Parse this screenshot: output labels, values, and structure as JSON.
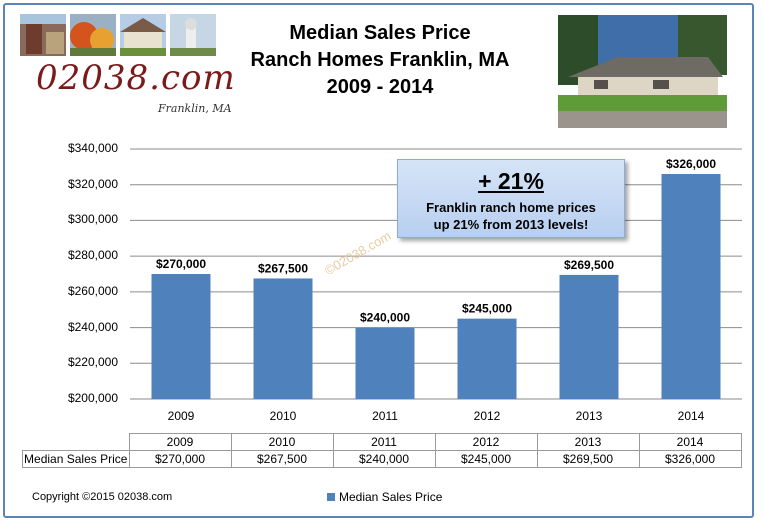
{
  "header": {
    "title_lines": [
      "Median Sales Price",
      "Ranch Homes Franklin, MA",
      "2009 - 2014"
    ],
    "logo_text": "02038.com",
    "logo_subtext": "Franklin, MA"
  },
  "chart_data": {
    "type": "bar",
    "title": "Median Sales Price Ranch Homes Franklin, MA 2009 - 2014",
    "categories": [
      "2009",
      "2010",
      "2011",
      "2012",
      "2013",
      "2014"
    ],
    "series": [
      {
        "name": "Median Sales Price",
        "values": [
          270000,
          267500,
          240000,
          245000,
          269500,
          326000
        ]
      }
    ],
    "data_labels": [
      "$270,000",
      "$267,500",
      "$240,000",
      "$245,000",
      "$269,500",
      "$326,000"
    ],
    "y_ticks": [
      "$200,000",
      "$220,000",
      "$240,000",
      "$260,000",
      "$280,000",
      "$300,000",
      "$320,000",
      "$340,000"
    ],
    "ylim": [
      200000,
      340000
    ],
    "grid": true,
    "legend_position": "bottom",
    "bar_color": "#4f81bd"
  },
  "callout": {
    "headline": "+ 21%",
    "line1": "Franklin ranch home prices",
    "line2": "up 21% from 2013 levels!"
  },
  "watermark": "©02038.com",
  "table": {
    "row_label": "Median Sales Price",
    "years": [
      "2009",
      "2010",
      "2011",
      "2012",
      "2013",
      "2014"
    ],
    "values": [
      "$270,000",
      "$267,500",
      "$240,000",
      "$245,000",
      "$269,500",
      "$326,000"
    ]
  },
  "legend": {
    "label": "Median Sales Price"
  },
  "footer": {
    "copyright": "Copyright ©2015 02038.com"
  }
}
